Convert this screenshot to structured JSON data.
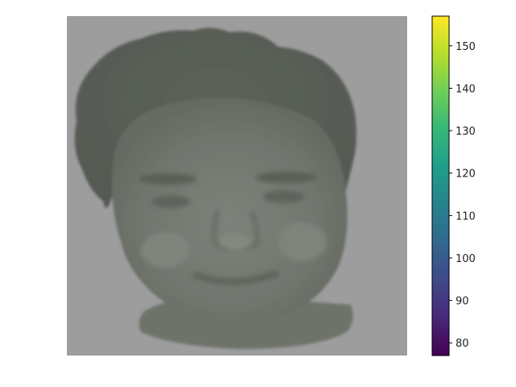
{
  "image": {
    "subject": "face-photo",
    "background_color": "#9d9d9d",
    "tone_color": "#6b7068"
  },
  "colorbar": {
    "colormap": "viridis",
    "min": 77,
    "max": 157,
    "ticks": [
      {
        "value": 80,
        "label": "80"
      },
      {
        "value": 90,
        "label": "90"
      },
      {
        "value": 100,
        "label": "100"
      },
      {
        "value": 110,
        "label": "110"
      },
      {
        "value": 120,
        "label": "120"
      },
      {
        "value": 130,
        "label": "130"
      },
      {
        "value": 140,
        "label": "140"
      },
      {
        "value": 150,
        "label": "150"
      }
    ],
    "stops": [
      "#440154",
      "#482878",
      "#3e4989",
      "#31688e",
      "#26828e",
      "#1f9e89",
      "#35b779",
      "#6ece58",
      "#b5de2b",
      "#fde725"
    ]
  }
}
